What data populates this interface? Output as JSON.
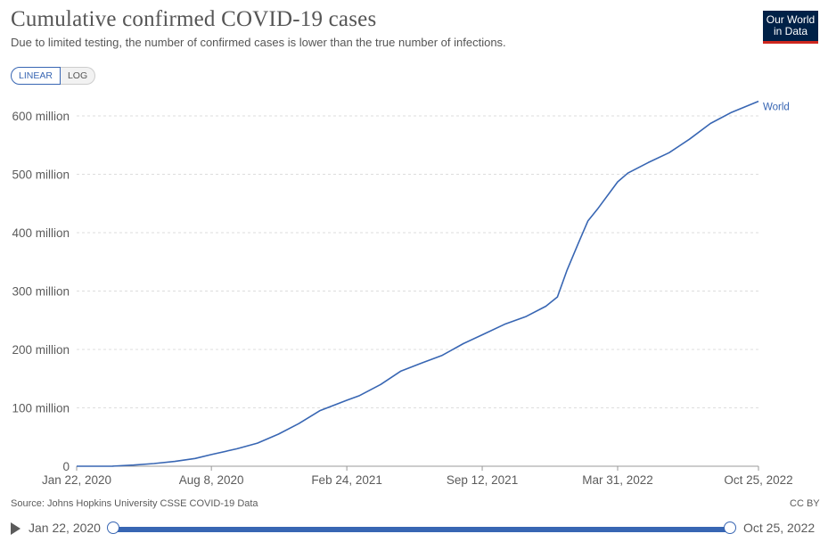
{
  "header": {
    "title": "Cumulative confirmed COVID-19 cases",
    "subtitle": "Due to limited testing, the number of confirmed cases is lower than the true number of infections.",
    "logo_line1": "Our World",
    "logo_line2": "in Data"
  },
  "scale_toggle": {
    "linear_label": "LINEAR",
    "log_label": "LOG",
    "selected": "linear"
  },
  "footer": {
    "source": "Source: Johns Hopkins University CSSE COVID-19 Data",
    "license": "CC BY"
  },
  "timeline": {
    "start_label": "Jan 22, 2020",
    "end_label": "Oct 25, 2022"
  },
  "colors": {
    "series": "#3866b3",
    "grid": "#dddddd",
    "axis": "#999999",
    "logo_bg": "#002147",
    "logo_accent": "#ce261e"
  },
  "chart_data": {
    "type": "line",
    "title": "Cumulative confirmed COVID-19 cases",
    "subtitle": "Due to limited testing, the number of confirmed cases is lower than the true number of infections.",
    "xlabel": "",
    "ylabel": "",
    "x_ticks": [
      "Jan 22, 2020",
      "Aug 8, 2020",
      "Feb 24, 2021",
      "Sep 12, 2021",
      "Mar 31, 2022",
      "Oct 25, 2022"
    ],
    "y_ticks": [
      {
        "value": 0,
        "label": "0"
      },
      {
        "value": 100000000,
        "label": "100 million"
      },
      {
        "value": 200000000,
        "label": "200 million"
      },
      {
        "value": 300000000,
        "label": "300 million"
      },
      {
        "value": 400000000,
        "label": "400 million"
      },
      {
        "value": 500000000,
        "label": "500 million"
      },
      {
        "value": 600000000,
        "label": "600 million"
      }
    ],
    "xlim": [
      "2020-01-22",
      "2022-10-25"
    ],
    "ylim": [
      0,
      600000000
    ],
    "grid": true,
    "series": [
      {
        "name": "World",
        "x": [
          "2020-01-22",
          "2020-03-15",
          "2020-04-15",
          "2020-05-15",
          "2020-06-15",
          "2020-07-15",
          "2020-08-08",
          "2020-09-15",
          "2020-10-15",
          "2020-11-15",
          "2020-12-15",
          "2021-01-15",
          "2021-02-24",
          "2021-03-15",
          "2021-04-15",
          "2021-05-15",
          "2021-06-15",
          "2021-07-15",
          "2021-08-15",
          "2021-09-12",
          "2021-10-15",
          "2021-11-15",
          "2021-12-15",
          "2022-01-01",
          "2022-01-15",
          "2022-02-01",
          "2022-02-15",
          "2022-03-01",
          "2022-03-31",
          "2022-04-15",
          "2022-05-15",
          "2022-06-15",
          "2022-07-15",
          "2022-08-15",
          "2022-09-15",
          "2022-10-25"
        ],
        "y": [
          600,
          170000,
          2000000,
          4600000,
          8200000,
          13300000,
          20000000,
          30000000,
          39500000,
          55000000,
          73000000,
          95000000,
          113000000,
          121000000,
          140000000,
          163000000,
          177000000,
          190000000,
          210000000,
          225000000,
          243000000,
          256000000,
          274000000,
          290000000,
          335000000,
          382000000,
          420000000,
          440000000,
          487000000,
          502000000,
          520000000,
          537000000,
          560000000,
          587000000,
          606000000,
          625000000
        ]
      }
    ]
  }
}
